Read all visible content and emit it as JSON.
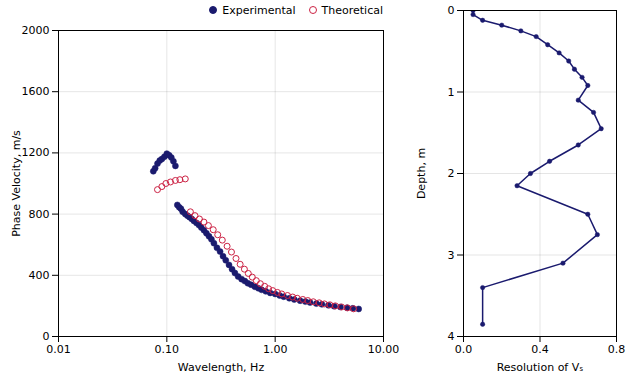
{
  "chart_data": [
    {
      "type": "scatter",
      "xlabel": "Wavelength, Hz",
      "ylabel": "Phase Velocity, m/s",
      "log": "x",
      "grid": true,
      "legend": "upper right",
      "xlim": [
        0.01,
        10.0
      ],
      "xticks": [
        0.01,
        {
          "value": 0.1,
          "label": "0.10"
        },
        {
          "value": 1.0,
          "label": "1.00"
        },
        {
          "value": 10.0,
          "label": "10.00"
        }
      ],
      "ylim": [
        0,
        2000
      ],
      "yticks": [
        0,
        400,
        800,
        1200,
        1600,
        2000
      ],
      "series": [
        {
          "name": "Experimental",
          "color": "#1a1a6e",
          "marker": "circle",
          "x": [
            0.075,
            0.078,
            0.082,
            0.086,
            0.09,
            0.095,
            0.1,
            0.105,
            0.11,
            0.115,
            0.12,
            0.125,
            0.13,
            0.135,
            0.14,
            0.148,
            0.155,
            0.162,
            0.17,
            0.178,
            0.188,
            0.198,
            0.208,
            0.22,
            0.232,
            0.245,
            0.258,
            0.272,
            0.29,
            0.31,
            0.33,
            0.35,
            0.375,
            0.4,
            0.425,
            0.455,
            0.49,
            0.525,
            0.56,
            0.6,
            0.65,
            0.7,
            0.75,
            0.82,
            0.9,
            1.0,
            1.1,
            1.2,
            1.35,
            1.5,
            1.7,
            1.9,
            2.1,
            2.4,
            2.7,
            3.1,
            3.5,
            4.0,
            4.6,
            5.2,
            5.9
          ],
          "values": [
            1080,
            1100,
            1130,
            1150,
            1160,
            1175,
            1195,
            1185,
            1170,
            1145,
            1115,
            860,
            845,
            835,
            815,
            800,
            790,
            780,
            768,
            755,
            742,
            728,
            712,
            695,
            675,
            655,
            635,
            610,
            580,
            555,
            525,
            498,
            468,
            440,
            415,
            392,
            375,
            362,
            348,
            338,
            325,
            315,
            305,
            295,
            285,
            278,
            268,
            260,
            250,
            242,
            234,
            228,
            222,
            215,
            210,
            204,
            198,
            193,
            188,
            184,
            180
          ]
        },
        {
          "name": "Theoretical",
          "color": "#cc2244",
          "marker": "open_circle",
          "x": [
            0.082,
            0.09,
            0.098,
            0.108,
            0.12,
            0.132,
            0.148,
            0.165,
            0.182,
            0.2,
            0.22,
            0.242,
            0.268,
            0.295,
            0.325,
            0.36,
            0.395,
            0.435,
            0.475,
            0.52,
            0.565,
            0.615,
            0.67,
            0.73,
            0.8,
            0.87,
            0.95,
            1.05,
            1.15,
            1.3,
            1.45,
            1.6,
            1.8,
            2.0,
            2.25,
            2.55,
            2.85,
            3.2,
            3.6,
            4.1,
            4.65,
            5.3
          ],
          "values": [
            960,
            980,
            1000,
            1010,
            1020,
            1025,
            1030,
            815,
            790,
            768,
            748,
            725,
            698,
            665,
            630,
            590,
            552,
            510,
            472,
            440,
            412,
            388,
            365,
            345,
            328,
            312,
            300,
            288,
            278,
            268,
            258,
            250,
            242,
            235,
            227,
            220,
            213,
            207,
            200,
            193,
            187,
            181
          ]
        }
      ]
    },
    {
      "type": "line",
      "xlabel": "Resolution of Vₛ",
      "ylabel": "Depth, m",
      "grid": true,
      "xlim": [
        0,
        0.8
      ],
      "xticks": [
        {
          "value": 0,
          "label": "0.0"
        },
        0.4,
        0.8
      ],
      "ylim": [
        4.0,
        0.0
      ],
      "yticks": [
        0,
        1,
        2,
        3,
        4
      ],
      "series": [
        {
          "color": "#1a1a6e",
          "marker": "circle",
          "x": [
            0.05,
            0.05,
            0.1,
            0.2,
            0.3,
            0.38,
            0.44,
            0.5,
            0.55,
            0.58,
            0.62,
            0.65,
            0.6,
            0.68,
            0.72,
            0.6,
            0.45,
            0.35,
            0.28,
            0.65,
            0.7,
            0.52,
            0.1,
            0.1
          ],
          "values": [
            0.0,
            0.05,
            0.12,
            0.18,
            0.25,
            0.32,
            0.42,
            0.52,
            0.62,
            0.72,
            0.82,
            0.92,
            1.1,
            1.25,
            1.45,
            1.65,
            1.85,
            2.0,
            2.15,
            2.5,
            2.75,
            3.1,
            3.4,
            3.85
          ]
        }
      ]
    }
  ]
}
